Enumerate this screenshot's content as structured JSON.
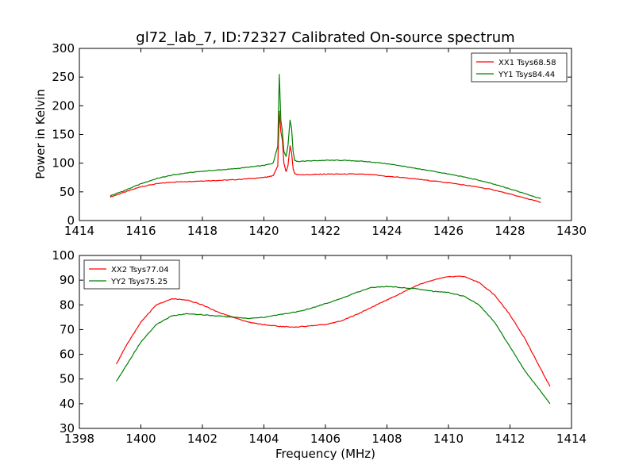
{
  "chart_data": [
    {
      "type": "line",
      "title": "gl72_lab_7, ID:72327 Calibrated On-source spectrum",
      "xlabel": "",
      "ylabel": "Power in Kelvin",
      "xlim": [
        1414,
        1430
      ],
      "ylim": [
        0,
        300
      ],
      "xticks": [
        "1414",
        "1416",
        "1418",
        "1420",
        "1422",
        "1424",
        "1426",
        "1428",
        "1430"
      ],
      "yticks": [
        "0",
        "50",
        "100",
        "150",
        "200",
        "250",
        "300"
      ],
      "legend_position": "top-right",
      "grid": false,
      "series": [
        {
          "name": "XX1 Tsys68.58",
          "color": "#ff0000",
          "x": [
            1415.0,
            1415.5,
            1416.0,
            1416.5,
            1417.0,
            1417.5,
            1418.0,
            1418.5,
            1419.0,
            1419.5,
            1420.0,
            1420.3,
            1420.45,
            1420.5,
            1420.55,
            1420.6,
            1420.65,
            1420.72,
            1420.78,
            1420.85,
            1420.9,
            1420.95,
            1421.0,
            1421.1,
            1421.5,
            1422.0,
            1422.5,
            1423.0,
            1423.5,
            1424.0,
            1424.5,
            1425.0,
            1425.5,
            1426.0,
            1426.5,
            1427.0,
            1427.5,
            1428.0,
            1428.5,
            1429.0
          ],
          "values": [
            41,
            50,
            59,
            64,
            67,
            68,
            69,
            70,
            71,
            73,
            75,
            78,
            95,
            190,
            155,
            140,
            100,
            85,
            95,
            130,
            118,
            90,
            82,
            80,
            80,
            81,
            81,
            81,
            80,
            77,
            75,
            72,
            69,
            66,
            62,
            58,
            53,
            46,
            39,
            32
          ]
        },
        {
          "name": "YY1 Tsys84.44",
          "color": "#008000",
          "x": [
            1415.0,
            1415.5,
            1416.0,
            1416.5,
            1417.0,
            1417.5,
            1418.0,
            1418.5,
            1419.0,
            1419.5,
            1420.0,
            1420.3,
            1420.45,
            1420.5,
            1420.55,
            1420.6,
            1420.65,
            1420.72,
            1420.78,
            1420.85,
            1420.9,
            1420.95,
            1421.0,
            1421.1,
            1421.5,
            1422.0,
            1422.5,
            1423.0,
            1423.5,
            1424.0,
            1424.5,
            1425.0,
            1425.5,
            1426.0,
            1426.5,
            1427.0,
            1427.5,
            1428.0,
            1428.5,
            1429.0
          ],
          "values": [
            43,
            53,
            64,
            73,
            79,
            83,
            86,
            88,
            90,
            93,
            96,
            100,
            130,
            255,
            175,
            155,
            120,
            112,
            130,
            175,
            160,
            120,
            105,
            103,
            104,
            105,
            105,
            104,
            102,
            99,
            95,
            90,
            86,
            81,
            76,
            70,
            63,
            55,
            47,
            38
          ]
        }
      ]
    },
    {
      "type": "line",
      "title": "",
      "xlabel": "Frequency (MHz)",
      "ylabel": "",
      "xlim": [
        1398,
        1414
      ],
      "ylim": [
        30,
        100
      ],
      "xticks": [
        "1398",
        "1400",
        "1402",
        "1404",
        "1406",
        "1408",
        "1410",
        "1412",
        "1414"
      ],
      "yticks": [
        "30",
        "40",
        "50",
        "60",
        "70",
        "80",
        "90",
        "100"
      ],
      "legend_position": "top-left",
      "grid": false,
      "series": [
        {
          "name": "XX2 Tsys77.04",
          "color": "#ff0000",
          "x": [
            1399.2,
            1399.5,
            1400.0,
            1400.5,
            1401.0,
            1401.5,
            1402.0,
            1402.5,
            1403.0,
            1403.5,
            1404.0,
            1404.5,
            1405.0,
            1405.5,
            1406.0,
            1406.5,
            1407.0,
            1407.5,
            1408.0,
            1408.5,
            1409.0,
            1409.5,
            1410.0,
            1410.5,
            1411.0,
            1411.5,
            1412.0,
            1412.5,
            1413.0,
            1413.3
          ],
          "values": [
            56,
            63,
            73,
            80,
            82.5,
            82,
            80,
            77,
            75,
            73,
            72,
            71.3,
            71,
            71.5,
            72,
            73.5,
            76,
            79,
            82,
            85,
            88,
            90,
            91.5,
            91.5,
            89,
            84,
            76,
            66,
            54,
            47
          ]
        },
        {
          "name": "YY2 Tsys75.25",
          "color": "#008000",
          "x": [
            1399.2,
            1399.5,
            1400.0,
            1400.5,
            1401.0,
            1401.5,
            1402.0,
            1402.5,
            1403.0,
            1403.5,
            1404.0,
            1404.5,
            1405.0,
            1405.5,
            1406.0,
            1406.5,
            1407.0,
            1407.5,
            1408.0,
            1408.5,
            1409.0,
            1409.5,
            1410.0,
            1410.5,
            1411.0,
            1411.5,
            1412.0,
            1412.5,
            1413.0,
            1413.3
          ],
          "values": [
            49,
            55,
            65,
            72,
            75.5,
            76.5,
            76,
            75.5,
            75,
            74.5,
            75,
            76,
            77,
            78.5,
            80.5,
            82.5,
            85,
            87,
            87.5,
            87,
            86.5,
            85.5,
            85,
            83.5,
            80,
            73,
            63,
            53,
            45,
            40
          ]
        }
      ]
    }
  ]
}
